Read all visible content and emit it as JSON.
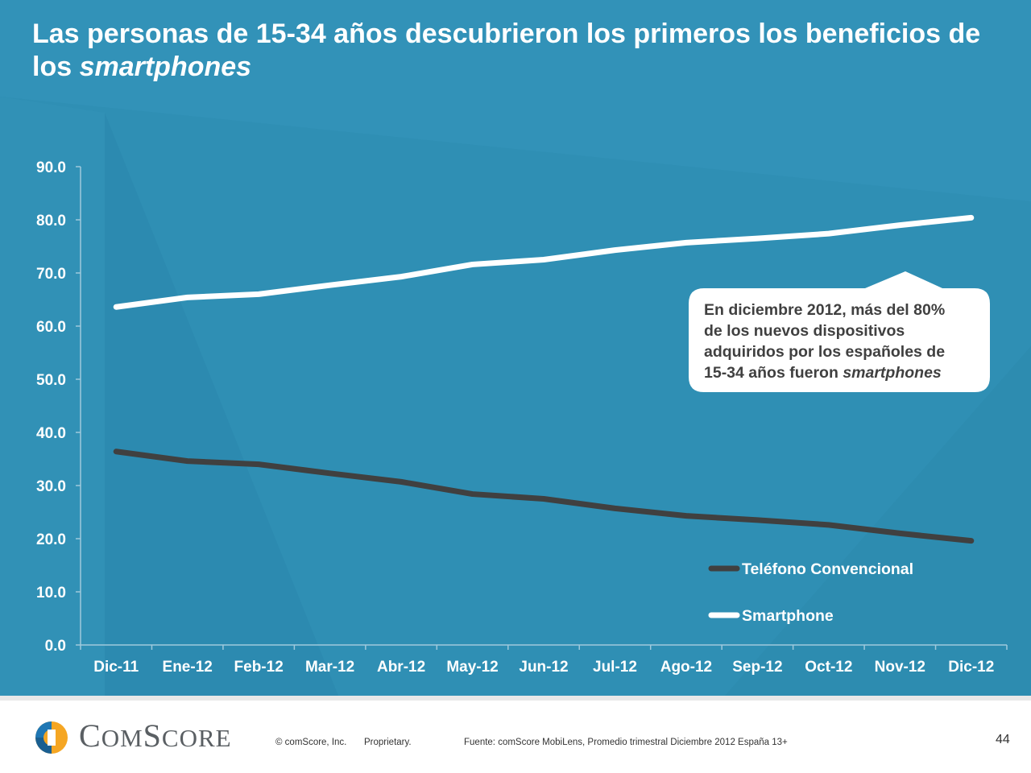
{
  "slide": {
    "title_prefix": "Las personas de 15-34 años descubrieron los primeros los beneficios de los ",
    "title_emphasis": "smartphones",
    "background_color": "#2f8fb4"
  },
  "callout": {
    "line1": "En diciembre 2012,  más del 80%",
    "line2": "de los nuevos dispositivos",
    "line3": "adquiridos por los españoles de",
    "line4_prefix": "15-34 años fueron ",
    "line4_emphasis": "smartphones"
  },
  "chart_data": {
    "type": "line",
    "title": "",
    "xlabel": "",
    "ylabel": "",
    "ylim": [
      0,
      90
    ],
    "ytick_labels": [
      "0.0",
      "10.0",
      "20.0",
      "30.0",
      "40.0",
      "50.0",
      "60.0",
      "70.0",
      "80.0",
      "90.0"
    ],
    "categories": [
      "Dic-11",
      "Ene-12",
      "Feb-12",
      "Mar-12",
      "Abr-12",
      "May-12",
      "Jun-12",
      "Jul-12",
      "Ago-12",
      "Sep-12",
      "Oct-12",
      "Nov-12",
      "Dic-12"
    ],
    "series": [
      {
        "name": "Teléfono Convencional",
        "color": "#404040",
        "values": [
          36.4,
          34.6,
          34.0,
          32.3,
          30.7,
          28.4,
          27.5,
          25.7,
          24.3,
          23.5,
          22.6,
          21.0,
          19.6
        ]
      },
      {
        "name": "Smartphone",
        "color": "#ffffff",
        "values": [
          63.6,
          65.4,
          66.0,
          67.7,
          69.3,
          71.6,
          72.5,
          74.3,
          75.7,
          76.5,
          77.4,
          79.0,
          80.4
        ]
      }
    ],
    "legend_position": "lower-right",
    "grid": false
  },
  "footer": {
    "brand_initial": "C",
    "brand_mid": "OM",
    "brand_s": "S",
    "brand_end": "CORE",
    "copyright": "© comScore, Inc.",
    "proprietary": "Proprietary.",
    "source": "Fuente: comScore MobiLens, Promedio trimestral Diciembre 2012 España 13+",
    "page_number": "44"
  }
}
